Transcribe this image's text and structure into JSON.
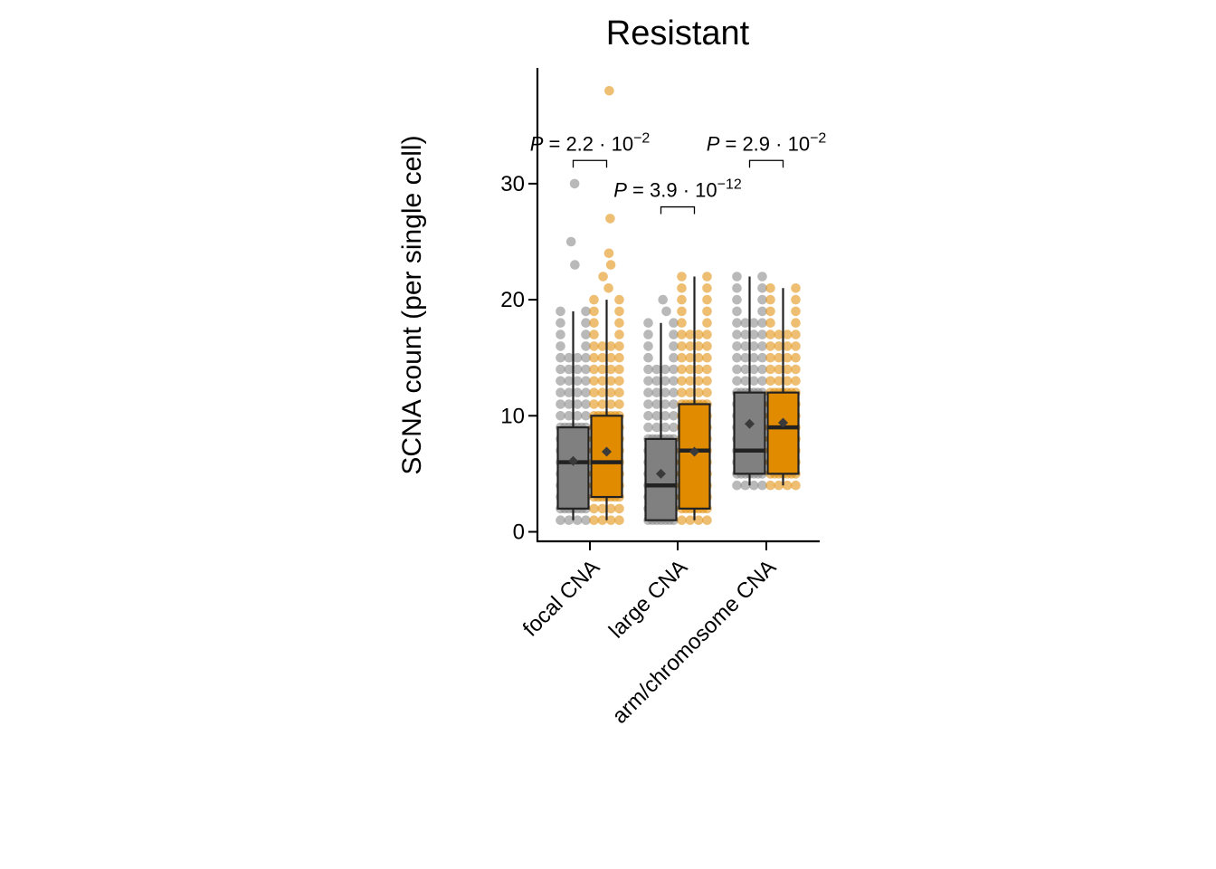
{
  "chart_data": {
    "type": "boxplot",
    "title": "Resistant",
    "xlabel": "",
    "ylabel": "SCNA count (per single cell)",
    "ylim": [
      -1,
      40
    ],
    "yticks": [
      0,
      10,
      20,
      30
    ],
    "categories": [
      "focal CNA",
      "large CNA",
      "arm/chromosome CNA"
    ],
    "legend": "none",
    "grid": false,
    "series": [
      {
        "color": "#808080",
        "boxes": [
          {
            "min": 1,
            "q1": 2,
            "median": 6,
            "q3": 9,
            "max": 19,
            "mean": 6.1,
            "outliers": [
              23,
              25,
              30
            ]
          },
          {
            "min": 1,
            "q1": 1,
            "median": 4,
            "q3": 8,
            "max": 18,
            "mean": 5.0,
            "outliers": [
              19,
              20
            ]
          },
          {
            "min": 4,
            "q1": 5,
            "median": 7,
            "q3": 12,
            "max": 22,
            "mean": 9.3,
            "outliers": []
          }
        ]
      },
      {
        "color": "#E08B00",
        "boxes": [
          {
            "min": 1,
            "q1": 3,
            "median": 6,
            "q3": 10,
            "max": 20,
            "mean": 6.9,
            "outliers": [
              21,
              22,
              23,
              24,
              27,
              38
            ]
          },
          {
            "min": 1,
            "q1": 2,
            "median": 7,
            "q3": 11,
            "max": 22,
            "mean": 6.9,
            "outliers": []
          },
          {
            "min": 4,
            "q1": 5,
            "median": 9,
            "q3": 12,
            "max": 21,
            "mean": 9.4,
            "outliers": []
          }
        ]
      }
    ],
    "annotations": [
      {
        "category": 0,
        "mantissa": "2.2",
        "exponent": "−2",
        "y": 32
      },
      {
        "category": 1,
        "mantissa": "3.9",
        "exponent": "−12",
        "y": 28
      },
      {
        "category": 2,
        "mantissa": "2.9",
        "exponent": "−2",
        "y": 32
      }
    ],
    "pval_prefix": "P",
    "pval_eq": " = ",
    "pval_times": " · 10"
  }
}
